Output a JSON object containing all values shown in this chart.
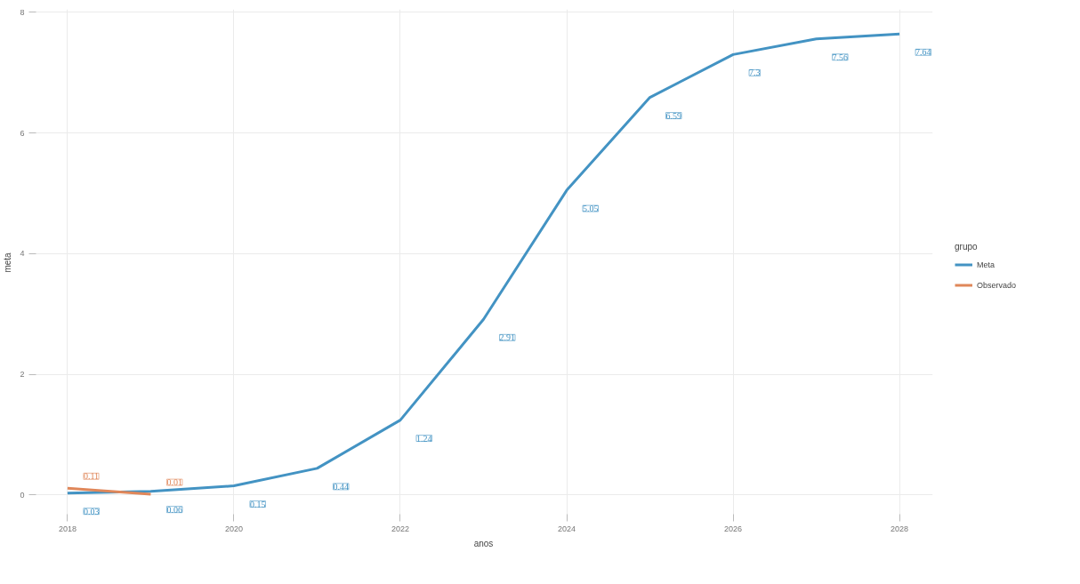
{
  "chart_data": {
    "type": "line",
    "xlabel": "anos",
    "ylabel": "meta",
    "legend_title": "grupo",
    "x": [
      2018,
      2019,
      2020,
      2021,
      2022,
      2023,
      2024,
      2025,
      2026,
      2027,
      2028
    ],
    "series": [
      {
        "name": "Meta",
        "color": "#4393c3",
        "values": [
          0.03,
          0.06,
          0.15,
          0.44,
          1.24,
          2.91,
          5.05,
          6.59,
          7.3,
          7.56,
          7.64
        ]
      },
      {
        "name": "Observado",
        "color": "#e0875a",
        "x": [
          2018,
          2019
        ],
        "values": [
          0.11,
          0.01
        ]
      }
    ],
    "xlim": [
      2017.6,
      2028.4
    ],
    "xticks": [
      2018,
      2020,
      2022,
      2024,
      2026,
      2028
    ],
    "ylim": [
      -0.35,
      8.05
    ],
    "yticks": [
      0,
      2,
      4,
      6,
      8
    ],
    "grid": true,
    "legend": "right",
    "data_labels": true,
    "marker": "none",
    "line_style": "solid"
  }
}
